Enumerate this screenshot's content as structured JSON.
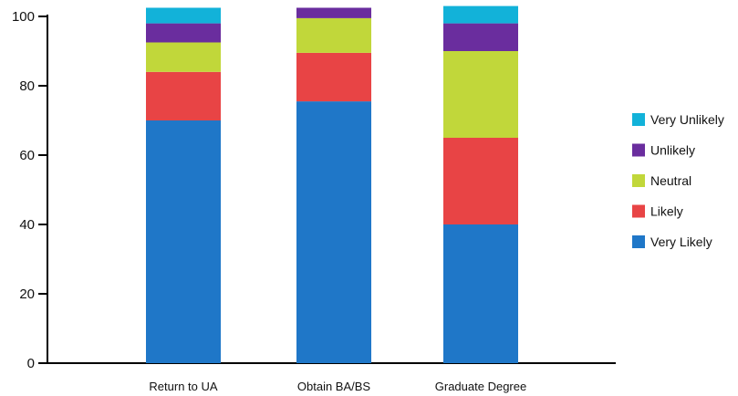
{
  "chart_data": {
    "type": "bar",
    "stacked": true,
    "title": "",
    "xlabel": "",
    "ylabel": "",
    "ylim": [
      0,
      100
    ],
    "yticks": [
      0,
      20,
      40,
      60,
      80,
      100
    ],
    "grid": false,
    "legend_position": "right",
    "categories": [
      "Return to UA",
      "Obtain BA/BS",
      "Graduate Degree"
    ],
    "series": [
      {
        "name": "Very Likely",
        "color": "#1f77c8",
        "values": [
          70,
          75.5,
          40
        ]
      },
      {
        "name": "Likely",
        "color": "#e84445",
        "values": [
          14,
          14,
          25
        ]
      },
      {
        "name": "Neutral",
        "color": "#c1d73a",
        "values": [
          8.5,
          10,
          25
        ]
      },
      {
        "name": "Unlikely",
        "color": "#6a2d9e",
        "values": [
          5.5,
          3,
          8
        ]
      },
      {
        "name": "Very Unlikely",
        "color": "#12b2d9",
        "values": [
          4.5,
          0,
          5
        ]
      }
    ]
  }
}
